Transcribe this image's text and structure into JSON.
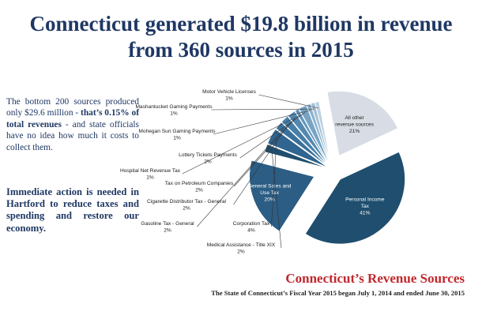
{
  "headline": {
    "line1": "Connecticut generated $19.8 billion in revenue",
    "line2": "from 360 sources in 2015"
  },
  "sidebar": {
    "para1_pre": "The bottom 200 sources produced only $29.6 million - ",
    "para1_bold": "that’s 0.15% of total revenues",
    "para1_post": " - and state officials have no idea how much it costs to collect them.",
    "para2": "Immediate action is needed in Hartford to reduce taxes and spending and restore our economy."
  },
  "chart_data": {
    "type": "pie",
    "title": "Connecticut’s Revenue Sources",
    "subtitle": "The State of Connecticut’s Fiscal Year 2015 began July 1, 2014 and ended June 30, 2015",
    "slices": [
      {
        "label": "Personal Income Tax",
        "value": 41,
        "value_label": "41%",
        "color": "#1f4e6e"
      },
      {
        "label": "General Sales and Use Tax",
        "value": 20,
        "value_label": "20%",
        "color": "#2c5d84"
      },
      {
        "label": "Medical Assistance - Title XIX",
        "value": 2,
        "value_label": "2%",
        "color": "#1f4e6e"
      },
      {
        "label": "Corporation Tax",
        "value": 4,
        "value_label": "4%",
        "color": "#2f6590"
      },
      {
        "label": "Gasoline Tax - General",
        "value": 2,
        "value_label": "2%",
        "color": "#3a719b"
      },
      {
        "label": "Cigarette Distributor Tax - General",
        "value": 2,
        "value_label": "2%",
        "color": "#467ea8"
      },
      {
        "label": "Tax on Petroleum Companies",
        "value": 2,
        "value_label": "2%",
        "color": "#5389b1"
      },
      {
        "label": "Hospital Net Revenue Tax",
        "value": 1,
        "value_label": "1%",
        "color": "#6396bb"
      },
      {
        "label": "Lottery Tickets Payments",
        "value": 2,
        "value_label": "2%",
        "color": "#77a4c5"
      },
      {
        "label": "Mohegan Sun Gaming Payments",
        "value": 1,
        "value_label": "1%",
        "color": "#8bb2cf"
      },
      {
        "label": "Mashantucket Gaming Payments",
        "value": 1,
        "value_label": "1%",
        "color": "#a3c1d8"
      },
      {
        "label": "Motor Vehicle Licenses",
        "value": 1,
        "value_label": "1%",
        "color": "#bcd0e0"
      },
      {
        "label": "All other revenue sources",
        "value": 21,
        "value_label": "21%",
        "color": "#d8dde5"
      }
    ]
  }
}
